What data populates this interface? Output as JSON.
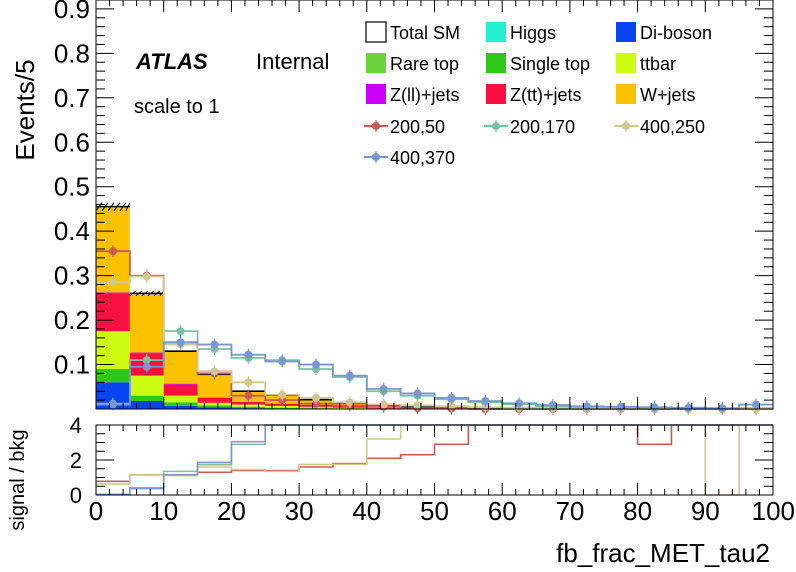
{
  "labels": {
    "atlas": "ATLAS",
    "internal": "Internal",
    "scale_note": "scale to 1"
  },
  "legend": [
    {
      "label": "Total SM",
      "swatch": "box",
      "color": "#ffffff"
    },
    {
      "label": "Higgs",
      "swatch": "fill",
      "color": "#22f0d0"
    },
    {
      "label": "Di-boson",
      "swatch": "fill",
      "color": "#0844f0"
    },
    {
      "label": "Rare top",
      "swatch": "fill",
      "color": "#6cd43a"
    },
    {
      "label": "Single top",
      "swatch": "fill",
      "color": "#30c818"
    },
    {
      "label": "ttbar",
      "swatch": "fill",
      "color": "#ccfc10"
    },
    {
      "label": "Z(ll)+jets",
      "swatch": "fill",
      "color": "#cc00f8"
    },
    {
      "label": "Z(tt)+jets",
      "swatch": "fill",
      "color": "#f81040"
    },
    {
      "label": "W+jets",
      "swatch": "fill",
      "color": "#fcc200"
    },
    {
      "label": "200,50",
      "swatch": "marker",
      "color": "#c85a58"
    },
    {
      "label": "200,170",
      "swatch": "marker",
      "color": "#7ec0a0"
    },
    {
      "label": "400,250",
      "swatch": "marker",
      "color": "#d0c890"
    },
    {
      "label": "400,370",
      "swatch": "marker",
      "color": "#7898d0"
    }
  ],
  "chart_data": [
    {
      "type": "bar",
      "stacked": true,
      "ylabel": "Events/5",
      "xlim": [
        0,
        100
      ],
      "ylim": [
        0,
        0.92
      ],
      "ytick_labels": [
        "0.1",
        "0.2",
        "0.3",
        "0.4",
        "0.5",
        "0.6",
        "0.7",
        "0.8",
        "0.9"
      ],
      "bin_edges": [
        0,
        5,
        10,
        15,
        20,
        25,
        30,
        35,
        40,
        45,
        50,
        55,
        60,
        65,
        70,
        75,
        80,
        85,
        90,
        95,
        100
      ],
      "stack": [
        {
          "name": "Di-boson",
          "color": "#0844f0",
          "values": [
            0.06,
            0.018,
            0.007,
            0.004,
            0.002,
            0.001,
            0.001,
            0,
            0,
            0,
            0,
            0,
            0,
            0,
            0,
            0,
            0,
            0,
            0,
            0
          ]
        },
        {
          "name": "Single top",
          "color": "#30c818",
          "values": [
            0.03,
            0.012,
            0.008,
            0.004,
            0.003,
            0.002,
            0.001,
            0.001,
            0,
            0,
            0,
            0,
            0,
            0,
            0,
            0,
            0,
            0,
            0,
            0
          ]
        },
        {
          "name": "Rare top",
          "color": "#6cd43a",
          "values": [
            0,
            0,
            0,
            0,
            0,
            0,
            0,
            0,
            0,
            0,
            0,
            0,
            0,
            0,
            0,
            0,
            0,
            0,
            0,
            0
          ]
        },
        {
          "name": "ttbar",
          "color": "#ccfc10",
          "values": [
            0.085,
            0.045,
            0.015,
            0.006,
            0.005,
            0.004,
            0.003,
            0.002,
            0.001,
            0,
            0,
            0,
            0,
            0,
            0,
            0,
            0,
            0,
            0,
            0
          ]
        },
        {
          "name": "Z(tt)+jets",
          "color": "#f81040",
          "values": [
            0.085,
            0.05,
            0.025,
            0.011,
            0.006,
            0.005,
            0.004,
            0.003,
            0.001,
            0,
            0,
            0,
            0,
            0,
            0,
            0,
            0,
            0,
            0,
            0
          ]
        },
        {
          "name": "Z(ll)+jets",
          "color": "#cc00f8",
          "values": [
            0.002,
            0.002,
            0.002,
            0.001,
            0,
            0,
            0,
            0,
            0,
            0,
            0,
            0,
            0,
            0,
            0,
            0,
            0,
            0,
            0,
            0
          ]
        },
        {
          "name": "W+jets",
          "color": "#fcc200",
          "values": [
            0.19,
            0.13,
            0.073,
            0.052,
            0.024,
            0.019,
            0.012,
            0.008,
            0.005,
            0,
            0,
            0,
            0,
            0,
            0,
            0,
            0,
            0,
            0,
            0
          ]
        },
        {
          "name": "Higgs",
          "color": "#22f0d0",
          "values": [
            0,
            0,
            0,
            0,
            0,
            0,
            0,
            0,
            0,
            0,
            0,
            0,
            0,
            0,
            0,
            0,
            0,
            0,
            0,
            0
          ]
        }
      ],
      "total_sm": [
        0.455,
        0.26,
        0.13,
        0.078,
        0.04,
        0.031,
        0.021,
        0.014,
        0.007,
        0.004,
        0.002,
        0.001,
        0.001,
        0,
        0,
        0,
        0,
        0,
        0,
        0
      ],
      "signals": [
        {
          "name": "200,50",
          "color": "#c85a58",
          "values": [
            0.355,
            0.3,
            0.15,
            0.08,
            0.03,
            0.02,
            0.012,
            0.008,
            0.005,
            0.002,
            0.001,
            0,
            0,
            0,
            0,
            0,
            0,
            0,
            0,
            0
          ]
        },
        {
          "name": "200,170",
          "color": "#7ec0a0",
          "values": [
            0.012,
            0.11,
            0.175,
            0.135,
            0.115,
            0.11,
            0.09,
            0.072,
            0.04,
            0.03,
            0.022,
            0.015,
            0.011,
            0.006,
            0.004,
            0.003,
            0.002,
            0.001,
            0.001,
            0.002
          ]
        },
        {
          "name": "400,250",
          "color": "#d0c890",
          "values": [
            0.285,
            0.298,
            0.145,
            0.085,
            0.06,
            0.032,
            0.025,
            0.015,
            0.01,
            0.008,
            0.006,
            0.004,
            0.003,
            0.002,
            0.001,
            0.001,
            0.001,
            0,
            0,
            0
          ]
        },
        {
          "name": "400,370",
          "color": "#7898d0",
          "values": [
            0.01,
            0.095,
            0.15,
            0.145,
            0.122,
            0.107,
            0.1,
            0.075,
            0.045,
            0.035,
            0.025,
            0.018,
            0.013,
            0.009,
            0.006,
            0.005,
            0.004,
            0.003,
            0.002,
            0.01
          ]
        }
      ]
    },
    {
      "type": "line",
      "ylabel": "signal / bkg",
      "xlabel": "fb_frac_MET_tau2",
      "xlim": [
        0,
        100
      ],
      "ylim": [
        0,
        4
      ],
      "ytick_labels": [
        "0",
        "2",
        "4"
      ],
      "xtick_labels": [
        "0",
        "10",
        "20",
        "30",
        "40",
        "50",
        "60",
        "70",
        "80",
        "90",
        "100"
      ],
      "bin_edges": [
        0,
        5,
        10,
        15,
        20,
        25,
        30,
        35,
        40,
        45,
        50,
        55,
        60,
        65,
        70,
        75,
        80,
        85,
        90,
        95,
        100
      ],
      "series": [
        {
          "name": "200,50",
          "color": "#c85a58",
          "values": [
            0.78,
            1.15,
            1.15,
            1.3,
            1.4,
            1.4,
            1.6,
            1.8,
            2.1,
            2.3,
            2.9,
            4,
            4,
            4,
            4,
            4,
            2.9,
            4,
            4,
            4
          ]
        },
        {
          "name": "200,170",
          "color": "#7ec0a0",
          "values": [
            0.03,
            0.42,
            1.35,
            1.73,
            2.9,
            4,
            4,
            4,
            4,
            4,
            4,
            4,
            4,
            4,
            4,
            4,
            4,
            4,
            4,
            4
          ]
        },
        {
          "name": "400,250",
          "color": "#d0c890",
          "values": [
            0.63,
            1.15,
            1.12,
            1.6,
            1.45,
            1.35,
            1.75,
            1.75,
            3.2,
            4,
            4,
            4,
            4,
            4,
            4,
            4,
            4,
            4,
            0,
            4
          ]
        },
        {
          "name": "400,370",
          "color": "#7898d0",
          "values": [
            0.03,
            0.37,
            1.15,
            1.86,
            3.05,
            4,
            4,
            4,
            4,
            4,
            4,
            4,
            4,
            4,
            4,
            4,
            4,
            4,
            4,
            4
          ]
        }
      ]
    }
  ]
}
